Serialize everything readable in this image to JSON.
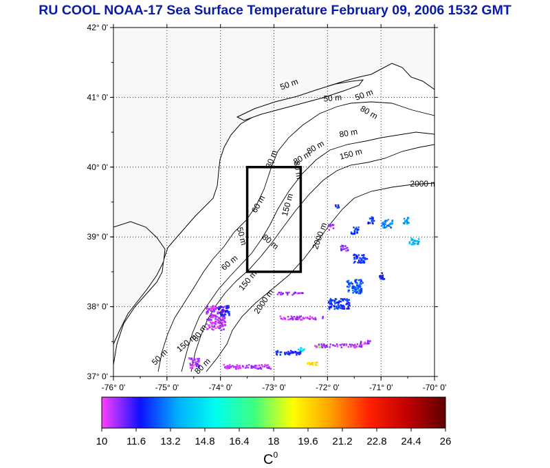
{
  "title": "RU COOL  NOAA-17 Sea Surface Temperature February 09, 2006 1532 GMT",
  "map": {
    "lon_range": [
      -76,
      -70
    ],
    "lat_range": [
      37,
      42
    ],
    "lat_ticks": [
      {
        "value": 42,
        "label": "42° 0'"
      },
      {
        "value": 41,
        "label": "41° 0'"
      },
      {
        "value": 40,
        "label": "40° 0'"
      },
      {
        "value": 39,
        "label": "39° 0'"
      },
      {
        "value": 38,
        "label": "38° 0'"
      },
      {
        "value": 37,
        "label": "37° 0'"
      }
    ],
    "lon_ticks": [
      {
        "value": -76,
        "label": "-76° 0'"
      },
      {
        "value": -75,
        "label": "-75° 0'"
      },
      {
        "value": -74,
        "label": "-74° 0'"
      },
      {
        "value": -73,
        "label": "-73° 0'"
      },
      {
        "value": -72,
        "label": "-72° 0'"
      },
      {
        "value": -71,
        "label": "-71° 0'"
      },
      {
        "value": -70,
        "label": "-70° 0'"
      }
    ],
    "study_box": {
      "lon_min": -73.5,
      "lon_max": -72.5,
      "lat_min": 38.5,
      "lat_max": 40.0
    },
    "contour_labels": [
      {
        "text": "50 m",
        "lon": -72.7,
        "lat": 41.15,
        "rot": -20
      },
      {
        "text": "50 m",
        "lon": -71.3,
        "lat": 41.0,
        "rot": -20
      },
      {
        "text": "50 m",
        "lon": -71.9,
        "lat": 40.95,
        "rot": -5
      },
      {
        "text": "80 m",
        "lon": -71.25,
        "lat": 40.75,
        "rot": 30
      },
      {
        "text": "80 m",
        "lon": -71.6,
        "lat": 40.45,
        "rot": -10
      },
      {
        "text": "80 m",
        "lon": -72.2,
        "lat": 40.25,
        "rot": -30
      },
      {
        "text": "80 m",
        "lon": -72.45,
        "lat": 40.1,
        "rot": -30
      },
      {
        "text": "150 m",
        "lon": -71.55,
        "lat": 40.15,
        "rot": -15
      },
      {
        "text": "2000 m",
        "lon": -70.2,
        "lat": 39.72,
        "rot": 0
      },
      {
        "text": "80 m",
        "lon": -72.6,
        "lat": 39.95,
        "rot": 80
      },
      {
        "text": "30 m",
        "lon": -73.0,
        "lat": 40.1,
        "rot": -70
      },
      {
        "text": "60 m",
        "lon": -73.25,
        "lat": 39.45,
        "rot": -60
      },
      {
        "text": "150 m",
        "lon": -72.7,
        "lat": 39.45,
        "rot": -75
      },
      {
        "text": "2000 m",
        "lon": -72.1,
        "lat": 39.0,
        "rot": -70
      },
      {
        "text": "50 m",
        "lon": -73.65,
        "lat": 39.0,
        "rot": 75
      },
      {
        "text": "80 m",
        "lon": -73.1,
        "lat": 38.9,
        "rot": 40
      },
      {
        "text": "60 m",
        "lon": -73.8,
        "lat": 38.6,
        "rot": -40
      },
      {
        "text": "150 m",
        "lon": -73.45,
        "lat": 38.35,
        "rot": -50
      },
      {
        "text": "2000 m",
        "lon": -73.15,
        "lat": 38.05,
        "rot": -55
      },
      {
        "text": "80 m",
        "lon": -74.35,
        "lat": 37.6,
        "rot": -55
      },
      {
        "text": "150 m",
        "lon": -74.6,
        "lat": 37.45,
        "rot": -40
      },
      {
        "text": "50 m",
        "lon": -75.1,
        "lat": 37.25,
        "rot": -45
      },
      {
        "text": "80 m",
        "lon": -74.3,
        "lat": 37.12,
        "rot": -45
      }
    ],
    "colors": {
      "land": "#f8f8f6",
      "frame": "#000000",
      "contour": "#000000",
      "study_box": "#000000"
    }
  },
  "colorbar": {
    "min": 10,
    "max": 26,
    "ticks": [
      "10",
      "11.6",
      "13.2",
      "14.8",
      "16.4",
      "18",
      "19.6",
      "21.2",
      "22.8",
      "24.4",
      "26"
    ],
    "unit_label": "C",
    "unit_superscript": "0",
    "stops": [
      "#ff40ff",
      "#1010ff",
      "#00b0ff",
      "#00ffee",
      "#40ff80",
      "#ffff00",
      "#ffa000",
      "#ff2000",
      "#c00000",
      "#600000"
    ]
  },
  "sst_patches": [
    {
      "lon": -74.1,
      "lat": 37.85,
      "temp": 10.5,
      "w": 0.35,
      "h": 0.35
    },
    {
      "lon": -73.95,
      "lat": 37.95,
      "temp": 11.8,
      "w": 0.2,
      "h": 0.15
    },
    {
      "lon": -74.5,
      "lat": 37.2,
      "temp": 10.5,
      "w": 0.2,
      "h": 0.15
    },
    {
      "lon": -73.5,
      "lat": 37.15,
      "temp": 10.5,
      "w": 0.9,
      "h": 0.06
    },
    {
      "lon": -72.75,
      "lat": 37.35,
      "temp": 12.0,
      "w": 0.5,
      "h": 0.06
    },
    {
      "lon": -72.5,
      "lat": 37.4,
      "temp": 15.0,
      "w": 0.12,
      "h": 0.05
    },
    {
      "lon": -72.3,
      "lat": 37.2,
      "temp": 19.5,
      "w": 0.2,
      "h": 0.06
    },
    {
      "lon": -72.2,
      "lat": 37.45,
      "temp": 18.0,
      "w": 0.1,
      "h": 0.05
    },
    {
      "lon": -71.8,
      "lat": 37.45,
      "temp": 10.5,
      "w": 0.9,
      "h": 0.05
    },
    {
      "lon": -72.5,
      "lat": 37.85,
      "temp": 10.5,
      "w": 0.8,
      "h": 0.05
    },
    {
      "lon": -72.7,
      "lat": 38.2,
      "temp": 10.8,
      "w": 0.5,
      "h": 0.04
    },
    {
      "lon": -71.8,
      "lat": 38.05,
      "temp": 12.2,
      "w": 0.4,
      "h": 0.15
    },
    {
      "lon": -71.5,
      "lat": 38.3,
      "temp": 12.5,
      "w": 0.3,
      "h": 0.2
    },
    {
      "lon": -71.4,
      "lat": 38.7,
      "temp": 12.0,
      "w": 0.25,
      "h": 0.12
    },
    {
      "lon": -71.7,
      "lat": 38.85,
      "temp": 10.8,
      "w": 0.15,
      "h": 0.08
    },
    {
      "lon": -71.5,
      "lat": 39.1,
      "temp": 12.3,
      "w": 0.15,
      "h": 0.1
    },
    {
      "lon": -71.95,
      "lat": 39.15,
      "temp": 10.6,
      "w": 0.1,
      "h": 0.08
    },
    {
      "lon": -71.2,
      "lat": 39.25,
      "temp": 12.2,
      "w": 0.12,
      "h": 0.1
    },
    {
      "lon": -70.9,
      "lat": 39.2,
      "temp": 13.0,
      "w": 0.2,
      "h": 0.12
    },
    {
      "lon": -70.55,
      "lat": 39.25,
      "temp": 13.5,
      "w": 0.12,
      "h": 0.1
    },
    {
      "lon": -70.4,
      "lat": 38.95,
      "temp": 13.8,
      "w": 0.2,
      "h": 0.1
    },
    {
      "lon": -71.85,
      "lat": 39.45,
      "temp": 12.0,
      "w": 0.1,
      "h": 0.05
    },
    {
      "lon": -71.0,
      "lat": 38.45,
      "temp": 12.0,
      "w": 0.1,
      "h": 0.1
    },
    {
      "lon": -71.3,
      "lat": 37.5,
      "temp": 10.5,
      "w": 0.2,
      "h": 0.05
    }
  ]
}
